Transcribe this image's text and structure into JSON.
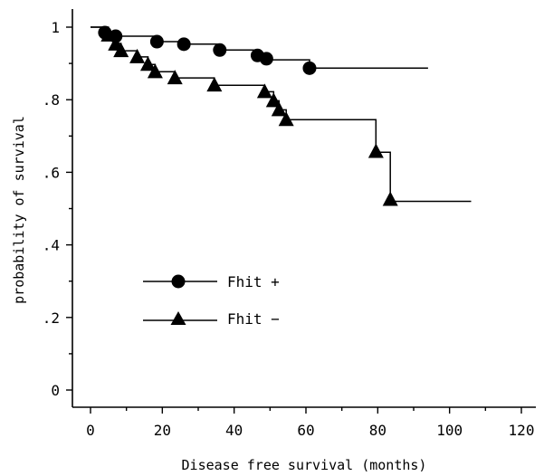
{
  "chart_data": {
    "type": "line",
    "subtype": "kaplan-meier-step",
    "title": "",
    "xlabel": "Disease free survival (months)",
    "ylabel": "probability of survival",
    "xlim": [
      0,
      120
    ],
    "ylim": [
      0,
      1
    ],
    "x_ticks": [
      0,
      20,
      40,
      60,
      80,
      100,
      120
    ],
    "x_tick_labels": [
      "0",
      "20",
      "40",
      "60",
      "80",
      "100",
      "120"
    ],
    "y_ticks": [
      0,
      0.2,
      0.4,
      0.6,
      0.8,
      1
    ],
    "y_tick_labels": [
      "0",
      ".2",
      ".4",
      ".6",
      ".8",
      "1"
    ],
    "grid": false,
    "legend_position": "center-left",
    "colors": {
      "line": "#000000",
      "background": "#ffffff"
    },
    "series": [
      {
        "name": "Fhit +",
        "marker": "circle",
        "step_x": [
          0,
          4,
          4,
          7,
          7,
          18.5,
          18.5,
          26,
          26,
          36,
          36,
          46.5,
          46.5,
          49,
          49,
          61,
          61,
          94
        ],
        "step_y": [
          1,
          1,
          0.985,
          0.985,
          0.975,
          0.975,
          0.96,
          0.96,
          0.953,
          0.953,
          0.937,
          0.937,
          0.922,
          0.922,
          0.91,
          0.91,
          0.887,
          0.887
        ],
        "points": [
          {
            "x": 4,
            "y": 0.985
          },
          {
            "x": 7,
            "y": 0.975
          },
          {
            "x": 18.5,
            "y": 0.96
          },
          {
            "x": 26,
            "y": 0.953
          },
          {
            "x": 36,
            "y": 0.937
          },
          {
            "x": 46.5,
            "y": 0.922
          },
          {
            "x": 49,
            "y": 0.913
          },
          {
            "x": 61,
            "y": 0.887
          }
        ]
      },
      {
        "name": "Fhit −",
        "marker": "triangle",
        "step_x": [
          0,
          5,
          5,
          7,
          7,
          8.5,
          8.5,
          13,
          13,
          16,
          16,
          18,
          18,
          23.5,
          23.5,
          34.5,
          34.5,
          48.5,
          48.5,
          51,
          51,
          52.5,
          52.5,
          54.5,
          54.5,
          79.5,
          79.5,
          83.5,
          83.5,
          106
        ],
        "step_y": [
          1,
          1,
          0.975,
          0.975,
          0.955,
          0.955,
          0.935,
          0.935,
          0.918,
          0.918,
          0.897,
          0.897,
          0.877,
          0.877,
          0.86,
          0.86,
          0.84,
          0.84,
          0.822,
          0.822,
          0.797,
          0.797,
          0.772,
          0.772,
          0.745,
          0.745,
          0.655,
          0.655,
          0.52,
          0.52
        ],
        "points": [
          {
            "x": 5,
            "y": 0.978
          },
          {
            "x": 7,
            "y": 0.953
          },
          {
            "x": 8.5,
            "y": 0.935
          },
          {
            "x": 13,
            "y": 0.918
          },
          {
            "x": 16,
            "y": 0.897
          },
          {
            "x": 18,
            "y": 0.877
          },
          {
            "x": 23.5,
            "y": 0.86
          },
          {
            "x": 34.5,
            "y": 0.84
          },
          {
            "x": 48.5,
            "y": 0.822
          },
          {
            "x": 51,
            "y": 0.797
          },
          {
            "x": 52.5,
            "y": 0.772
          },
          {
            "x": 54.5,
            "y": 0.745
          },
          {
            "x": 79.5,
            "y": 0.657
          },
          {
            "x": 83.5,
            "y": 0.525
          }
        ]
      }
    ],
    "legend": [
      {
        "label": "Fhit +",
        "marker": "circle"
      },
      {
        "label": "Fhit −",
        "marker": "triangle"
      }
    ]
  }
}
